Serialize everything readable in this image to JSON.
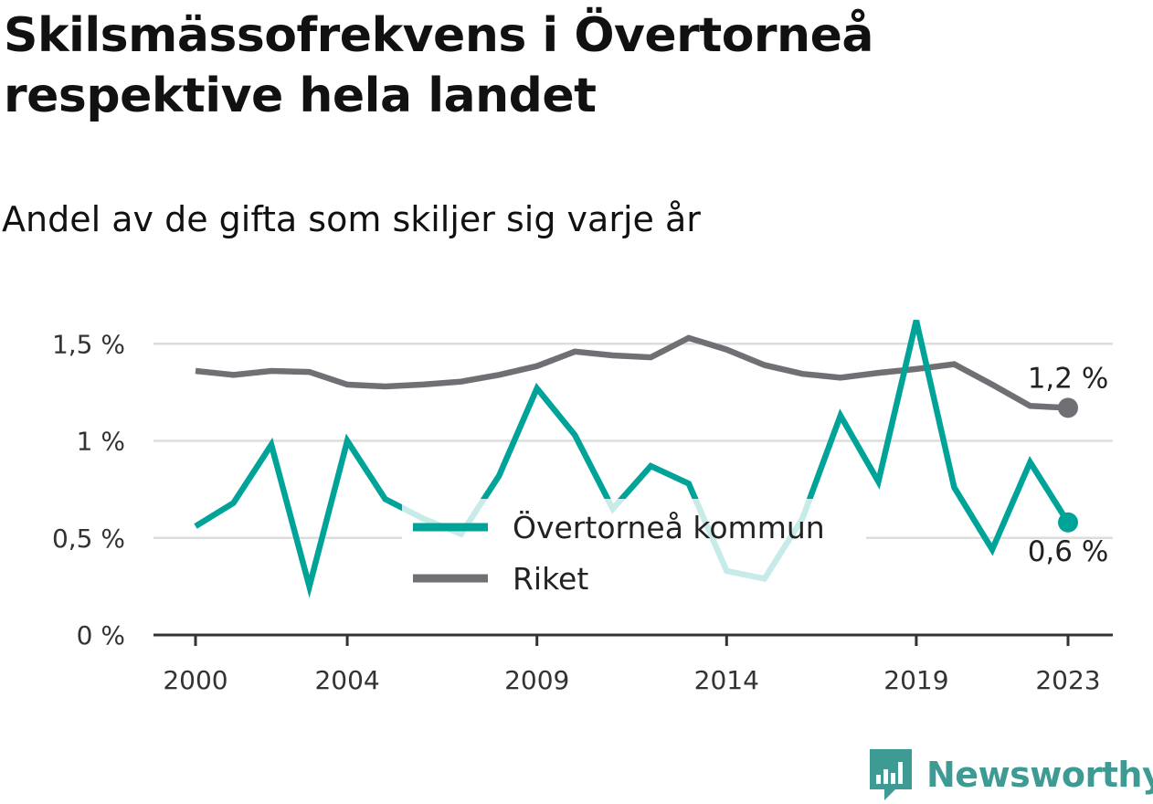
{
  "title": "Skilsmässofrekvens i Övertorneå respektive hela landet",
  "subtitle": "Andel av de gifta som skiljer sig varje år",
  "brand": {
    "name": "Newsworthy",
    "icon": "newsworthy-logo-icon",
    "color": "#3e9b93"
  },
  "chart_data": {
    "type": "line",
    "x": [
      2000,
      2001,
      2002,
      2003,
      2004,
      2005,
      2006,
      2007,
      2008,
      2009,
      2010,
      2011,
      2012,
      2013,
      2014,
      2015,
      2016,
      2017,
      2018,
      2019,
      2020,
      2021,
      2022,
      2023
    ],
    "x_tick_values": [
      2000,
      2004,
      2009,
      2014,
      2019,
      2023
    ],
    "x_tick_labels": [
      "2000",
      "2004",
      "2009",
      "2014",
      "2019",
      "2023"
    ],
    "ylim": [
      0,
      1.7
    ],
    "y_tick_values": [
      0,
      0.5,
      1,
      1.5
    ],
    "y_tick_labels": [
      "0 %",
      "0,5 %",
      "1 %",
      "1,5 %"
    ],
    "grid": true,
    "legend_position": "center",
    "series": [
      {
        "name": "Övertorneå kommun",
        "color": "#00a398",
        "end_label": "0,6 %",
        "values": [
          0.56,
          0.68,
          0.98,
          0.25,
          1.0,
          0.7,
          0.6,
          0.52,
          0.82,
          1.27,
          1.03,
          0.65,
          0.87,
          0.78,
          0.33,
          0.29,
          0.6,
          1.13,
          0.79,
          1.62,
          0.76,
          0.44,
          0.89,
          0.58
        ]
      },
      {
        "name": "Riket",
        "color": "#707074",
        "end_label": "1,2 %",
        "values": [
          1.36,
          1.34,
          1.36,
          1.355,
          1.29,
          1.28,
          1.29,
          1.305,
          1.34,
          1.385,
          1.46,
          1.44,
          1.43,
          1.53,
          1.47,
          1.39,
          1.345,
          1.325,
          1.35,
          1.37,
          1.395,
          1.29,
          1.18,
          1.17
        ]
      }
    ]
  }
}
